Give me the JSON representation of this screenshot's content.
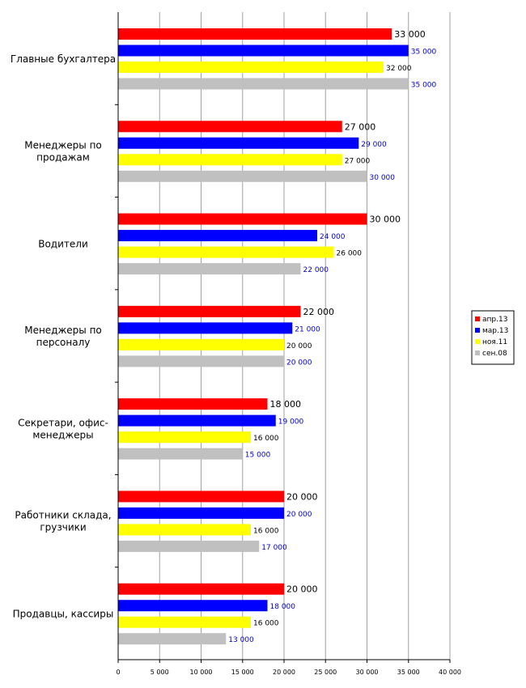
{
  "chart_data": {
    "type": "bar",
    "orientation": "horizontal",
    "categories": [
      "Главные бухгалтера",
      "Менеджеры по продажам",
      "Водители",
      "Менеджеры по персоналу",
      "Секретари, офис-менеджеры",
      "Работники склада, грузчики",
      "Продавцы, кассиры"
    ],
    "category_lines": [
      [
        "Главные бухгалтера"
      ],
      [
        "Менеджеры по",
        "продажам"
      ],
      [
        "Водители"
      ],
      [
        "Менеджеры по",
        "персоналу"
      ],
      [
        "Секретари, офис-",
        "менеджеры"
      ],
      [
        "Работники склада,",
        "грузчики"
      ],
      [
        "Продавцы, кассиры"
      ]
    ],
    "series": [
      {
        "name": "апр.13",
        "color": "#ff0000",
        "label_color": "#000000",
        "values": [
          33000,
          27000,
          30000,
          22000,
          18000,
          20000,
          20000
        ],
        "labels": [
          "33 000",
          "27 000",
          "30 000",
          "22 000",
          "18 000",
          "20 000",
          "20 000"
        ]
      },
      {
        "name": "мар.13",
        "color": "#0000ff",
        "label_color": "#0000cc",
        "values": [
          35000,
          29000,
          24000,
          21000,
          19000,
          20000,
          18000
        ],
        "labels": [
          "35 000",
          "29 000",
          "24 000",
          "21 000",
          "19 000",
          "20 000",
          "18 000"
        ]
      },
      {
        "name": "ноя.11",
        "color": "#ffff00",
        "label_color": "#000000",
        "values": [
          32000,
          27000,
          26000,
          20000,
          16000,
          16000,
          16000
        ],
        "labels": [
          "32 000",
          "27 000",
          "26 000",
          "20 000",
          "16 000",
          "16 000",
          "16 000"
        ]
      },
      {
        "name": "сен.08",
        "color": "#c0c0c0",
        "label_color": "#0000cc",
        "values": [
          35000,
          30000,
          22000,
          20000,
          15000,
          17000,
          13000
        ],
        "labels": [
          "35 000",
          "30 000",
          "22 000",
          "20 000",
          "15 000",
          "17 000",
          "13 000"
        ]
      }
    ],
    "xlim": [
      0,
      40000
    ],
    "x_ticks": [
      0,
      5000,
      10000,
      15000,
      20000,
      25000,
      30000,
      35000,
      40000
    ],
    "x_tick_labels": [
      "0",
      "5 000",
      "10 000",
      "15 000",
      "20 000",
      "25 000",
      "30 000",
      "35 000",
      "40 000"
    ],
    "grid": "vertical",
    "legend_position": "right",
    "title": "",
    "xlabel": "",
    "ylabel": ""
  }
}
